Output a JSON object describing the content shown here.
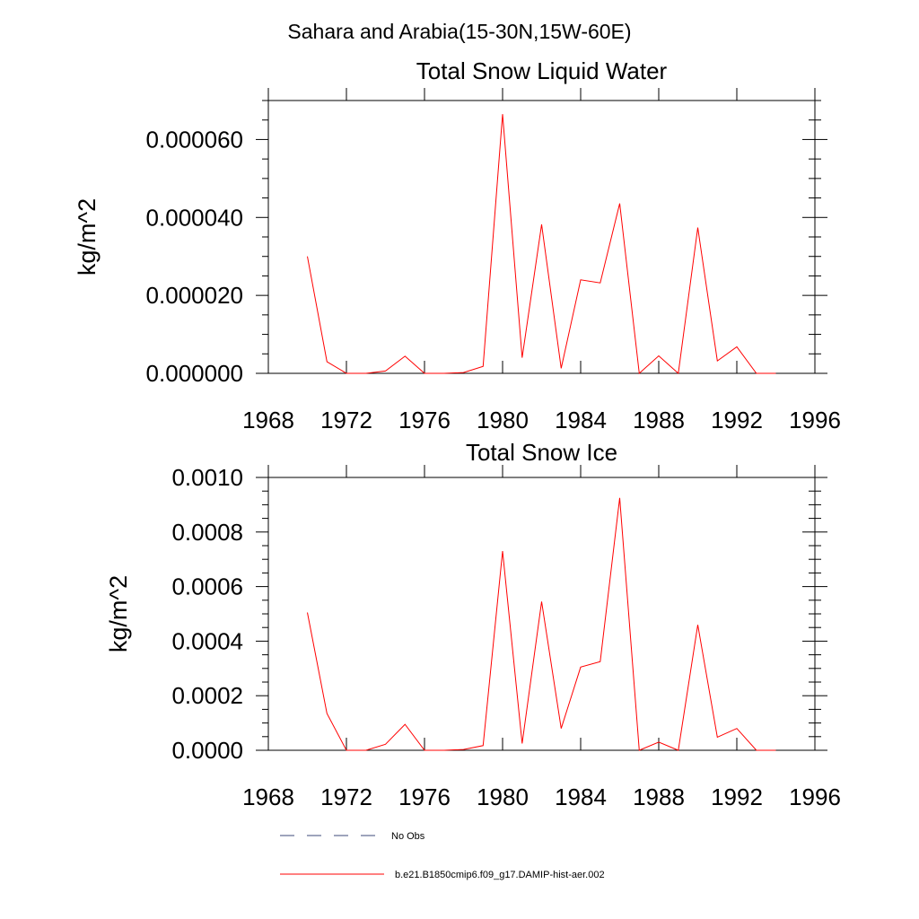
{
  "figure": {
    "suptitle": "Sahara and Arabia(15-30N,15W-60E)"
  },
  "chart_data": [
    {
      "type": "line",
      "title": "Total Snow Liquid Water",
      "xlabel": "",
      "ylabel": "kg/m^2",
      "xlim": [
        1968,
        1996
      ],
      "ylim": [
        0,
        7e-05
      ],
      "xticks": [
        1968,
        1972,
        1976,
        1980,
        1984,
        1988,
        1992,
        1996
      ],
      "xtick_labels": [
        "1968",
        "1972",
        "1976",
        "1980",
        "1984",
        "1988",
        "1992",
        "1996"
      ],
      "yticks": [
        0,
        2e-05,
        4e-05,
        6e-05
      ],
      "ytick_labels": [
        "0.000000",
        "0.000020",
        "0.000040",
        "0.000060"
      ],
      "grid": false,
      "series": [
        {
          "name": "b.e21.B1850cmip6.f09_g17.DAMIP-hist-aer.002",
          "color": "#ff0000",
          "x": [
            1970,
            1971,
            1972,
            1973,
            1974,
            1975,
            1976,
            1977,
            1978,
            1979,
            1980,
            1981,
            1982,
            1983,
            1984,
            1985,
            1986,
            1987,
            1988,
            1989,
            1990,
            1991,
            1992,
            1993,
            1994
          ],
          "y": [
            3e-05,
            3e-06,
            0.0,
            0.0,
            6e-07,
            4.4e-06,
            0.0,
            0.0,
            2e-07,
            1.8e-06,
            6.65e-05,
            4e-06,
            3.82e-05,
            1.3e-06,
            2.4e-05,
            2.32e-05,
            4.36e-05,
            0.0,
            4.5e-06,
            0.0,
            3.74e-05,
            3.2e-06,
            6.8e-06,
            0.0,
            0.0
          ]
        }
      ]
    },
    {
      "type": "line",
      "title": "Total Snow Ice",
      "xlabel": "",
      "ylabel": "kg/m^2",
      "xlim": [
        1968,
        1996
      ],
      "ylim": [
        0,
        0.001
      ],
      "xticks": [
        1968,
        1972,
        1976,
        1980,
        1984,
        1988,
        1992,
        1996
      ],
      "xtick_labels": [
        "1968",
        "1972",
        "1976",
        "1980",
        "1984",
        "1988",
        "1992",
        "1996"
      ],
      "yticks": [
        0,
        0.0002,
        0.0004,
        0.0006,
        0.0008,
        0.001
      ],
      "ytick_labels": [
        "0.0000",
        "0.0002",
        "0.0004",
        "0.0006",
        "0.0008",
        "0.0010"
      ],
      "grid": false,
      "series": [
        {
          "name": "b.e21.B1850cmip6.f09_g17.DAMIP-hist-aer.002",
          "color": "#ff0000",
          "x": [
            1970,
            1971,
            1972,
            1973,
            1974,
            1975,
            1976,
            1977,
            1978,
            1979,
            1980,
            1981,
            1982,
            1983,
            1984,
            1985,
            1986,
            1987,
            1988,
            1989,
            1990,
            1991,
            1992,
            1993,
            1994
          ],
          "y": [
            0.000505,
            0.000135,
            0.0,
            0.0,
            2.2e-05,
            9.5e-05,
            0.0,
            0.0,
            3e-06,
            1.7e-05,
            0.00073,
            2.5e-05,
            0.000545,
            8e-05,
            0.000305,
            0.000325,
            0.000925,
            0.0,
            3e-05,
            0.0,
            0.00046,
            4.8e-05,
            8e-05,
            0.0,
            0.0
          ]
        }
      ]
    }
  ],
  "legend": {
    "placement": "bottom",
    "entries": [
      {
        "label": "No Obs",
        "style": "dashed",
        "color": "#3d4a7a"
      },
      {
        "label": "b.e21.B1850cmip6.f09_g17.DAMIP-hist-aer.002",
        "style": "solid",
        "color": "#ff0000"
      }
    ]
  }
}
